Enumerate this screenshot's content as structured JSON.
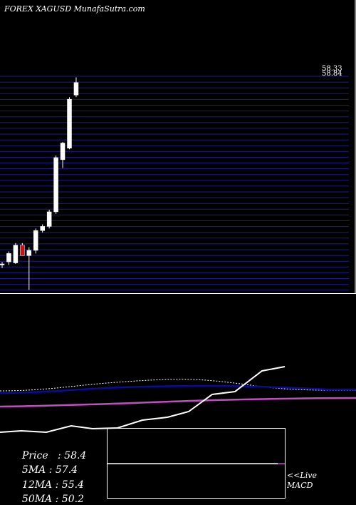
{
  "header": {
    "title": "FOREX XAGUSD MunafaSutra.com"
  },
  "stats": [
    {
      "label": "Price",
      "sep": ":",
      "value": "58.4"
    },
    {
      "label": "5MA",
      "sep": ":",
      "value": "57.4"
    },
    {
      "label": "12MA",
      "sep": ":",
      "value": "55.4"
    },
    {
      "label": "50MA",
      "sep": ":",
      "value": "50.2"
    }
  ],
  "indicator": {
    "live": "<<Live",
    "name": "MACD"
  },
  "colors": {
    "background": "#000000",
    "grid": "#1c1c8c",
    "bull_candle": "#ffffff",
    "bear_candle": "#cc1111",
    "ma_line": "#0b0b99",
    "ma_line_2": "#c050c0",
    "price_line": "#ffffff"
  },
  "chart_data": {
    "type": "candlestick",
    "price_axis_labels": [
      "58.33",
      "58.84"
    ],
    "candles": [
      {
        "o": 41.0,
        "h": 41.2,
        "l": 40.6,
        "c": 41.0
      },
      {
        "o": 41.2,
        "h": 42.2,
        "l": 40.9,
        "c": 42.0
      },
      {
        "o": 41.1,
        "h": 43.0,
        "l": 41.0,
        "c": 42.8
      },
      {
        "o": 42.8,
        "h": 43.0,
        "l": 41.8,
        "c": 41.8
      },
      {
        "o": 41.8,
        "h": 42.6,
        "l": 38.5,
        "c": 42.3
      },
      {
        "o": 42.3,
        "h": 44.4,
        "l": 42.0,
        "c": 44.2
      },
      {
        "o": 44.2,
        "h": 44.8,
        "l": 44.0,
        "c": 44.6
      },
      {
        "o": 44.6,
        "h": 46.2,
        "l": 44.4,
        "c": 46.0
      },
      {
        "o": 46.0,
        "h": 51.4,
        "l": 45.8,
        "c": 51.2
      },
      {
        "o": 51.0,
        "h": 52.7,
        "l": 50.2,
        "c": 52.6
      },
      {
        "o": 52.1,
        "h": 57.0,
        "l": 52.0,
        "c": 56.8
      },
      {
        "o": 57.2,
        "h": 58.9,
        "l": 57.0,
        "c": 58.4
      }
    ]
  }
}
